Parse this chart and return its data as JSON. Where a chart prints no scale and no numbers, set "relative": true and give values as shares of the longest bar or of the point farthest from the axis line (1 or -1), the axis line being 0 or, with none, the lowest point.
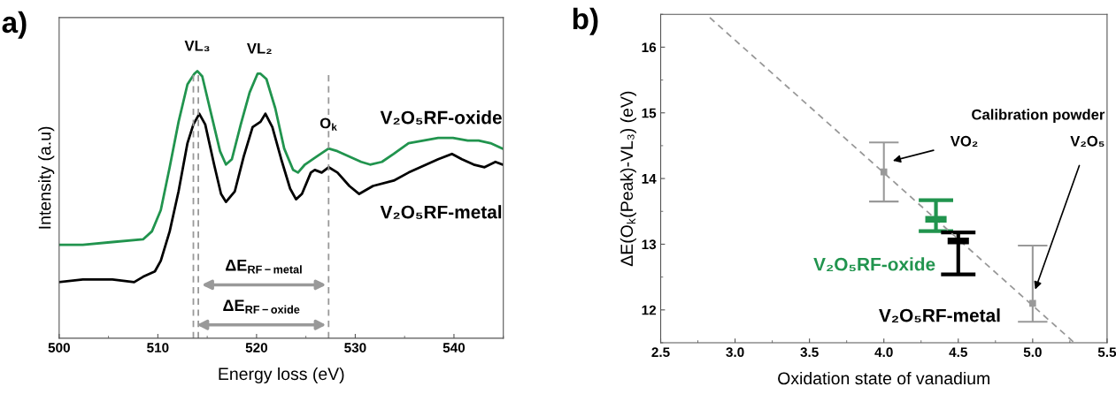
{
  "chart_data": [
    {
      "type": "line",
      "title": "a)",
      "xlabel": "Energy loss (eV)",
      "ylabel": "Intensity (a.u)",
      "relative": true,
      "xlim": [
        500,
        545
      ],
      "xticks": [
        500,
        510,
        520,
        530,
        540
      ],
      "tick_labels": "x",
      "grid": false,
      "legend": false,
      "series": [
        {
          "name": "V₂O₅RF-oxide",
          "color": "#21944e",
          "x": [
            500,
            502.4,
            505.4,
            508.5,
            509.4,
            510.3,
            511.2,
            512.1,
            513,
            513.7,
            514,
            514.5,
            515.4,
            516.3,
            516.9,
            517.5,
            518.4,
            519.3,
            520.1,
            520.4,
            521,
            521.9,
            522.8,
            523.7,
            524.2,
            524.9,
            526.1,
            527.3,
            528.2,
            529.4,
            530.6,
            531.5,
            532.7,
            533.9,
            535.4,
            536.9,
            538.4,
            539.9,
            541.4,
            542.5,
            543.7,
            544.9
          ],
          "values": [
            0.35,
            0.35,
            0.36,
            0.37,
            0.4,
            0.48,
            0.64,
            0.81,
            0.95,
            0.99,
            1.0,
            0.98,
            0.84,
            0.7,
            0.65,
            0.67,
            0.8,
            0.92,
            0.99,
            0.99,
            0.97,
            0.86,
            0.71,
            0.63,
            0.62,
            0.65,
            0.68,
            0.71,
            0.7,
            0.68,
            0.66,
            0.65,
            0.66,
            0.69,
            0.73,
            0.74,
            0.75,
            0.75,
            0.74,
            0.74,
            0.73,
            0.71
          ]
        },
        {
          "name": "V₂O₅RF-metal",
          "color": "#000000",
          "x": [
            500,
            502.4,
            505.4,
            507.6,
            508.5,
            509.7,
            510.3,
            511.2,
            512.1,
            513,
            513.6,
            514.2,
            514.8,
            515.7,
            516.4,
            516.9,
            517.8,
            518.7,
            519.6,
            520.4,
            520.9,
            521.6,
            522.5,
            523.4,
            524,
            524.6,
            525.5,
            525.9,
            526.6,
            527.3,
            528.2,
            529.4,
            530.4,
            531.8,
            533.9,
            535.4,
            537.2,
            538.4,
            539.8,
            540.8,
            542,
            543.1,
            544.2,
            544.9
          ],
          "values": [
            0.21,
            0.22,
            0.22,
            0.21,
            0.23,
            0.25,
            0.29,
            0.4,
            0.55,
            0.73,
            0.8,
            0.84,
            0.8,
            0.65,
            0.54,
            0.51,
            0.55,
            0.68,
            0.79,
            0.81,
            0.84,
            0.79,
            0.67,
            0.56,
            0.52,
            0.54,
            0.62,
            0.63,
            0.62,
            0.64,
            0.62,
            0.57,
            0.54,
            0.57,
            0.59,
            0.62,
            0.65,
            0.67,
            0.69,
            0.67,
            0.65,
            0.64,
            0.66,
            0.65
          ]
        }
      ],
      "ref_lines": [
        {
          "axis": "x",
          "value": 513.6,
          "color": "#999999",
          "line_style": "dashed"
        },
        {
          "axis": "x",
          "value": 514.1,
          "color": "#999999",
          "line_style": "dashed"
        },
        {
          "axis": "x",
          "value": 527.3,
          "color": "#999999",
          "line_style": "dashed"
        }
      ],
      "annotations": [
        {
          "text": "VL₃",
          "x": 514,
          "y": 1.0
        },
        {
          "text": "VL₂",
          "x": 520.3,
          "y": 0.99
        },
        {
          "text": "O$_{k}$",
          "x": 527.3,
          "y": 0.71
        },
        "ΔE$_{RF−metal}$",
        "ΔE$_{RF−oxide}$"
      ]
    },
    {
      "type": "scatter",
      "title": "b)",
      "xlabel": "Oxidation state of vanadium",
      "ylabel": "ΔE(O$_{k}$(Peak)-VL₃) (eV)",
      "xlim": [
        2.5,
        5.5
      ],
      "xticks": [
        2.5,
        {
          "value": 3,
          "label": "3.0"
        },
        3.5,
        {
          "value": 4,
          "label": "4.0"
        },
        4.5,
        {
          "value": 5,
          "label": "5.0"
        },
        5.5
      ],
      "ylim": [
        11.5,
        16.5
      ],
      "yticks": [
        12,
        13,
        14,
        15,
        16
      ],
      "grid": false,
      "legend": false,
      "series": [
        {
          "color": "#999999",
          "marker": "square",
          "x": [
            4.0,
            5.0
          ],
          "values": [
            14.1,
            12.1
          ],
          "errors": [
            [
              13.65,
              14.55
            ],
            [
              11.82,
              12.98
            ]
          ]
        },
        {
          "name": "V₂O₅RF-oxide",
          "color": "#21944e",
          "marker": "square",
          "x": [
            4.35
          ],
          "values": [
            13.38
          ],
          "errors": [
            [
              13.2,
              13.67
            ]
          ]
        },
        {
          "name": "V₂O₅RF-metal",
          "color": "#000000",
          "marker": "square",
          "x": [
            4.5
          ],
          "values": [
            13.05
          ],
          "errors": [
            [
              12.54,
              13.18
            ]
          ]
        },
        {
          "type": "line",
          "color": "#999999",
          "line_style": "dashed",
          "x": [
            2.83,
            5.28
          ],
          "values": [
            16.45,
            11.5
          ]
        }
      ],
      "annotations": [
        "Calibration powder",
        "VO₂",
        {
          "text": "V₂O₅",
          "x": 5.017,
          "y": 12.31
        }
      ]
    }
  ]
}
